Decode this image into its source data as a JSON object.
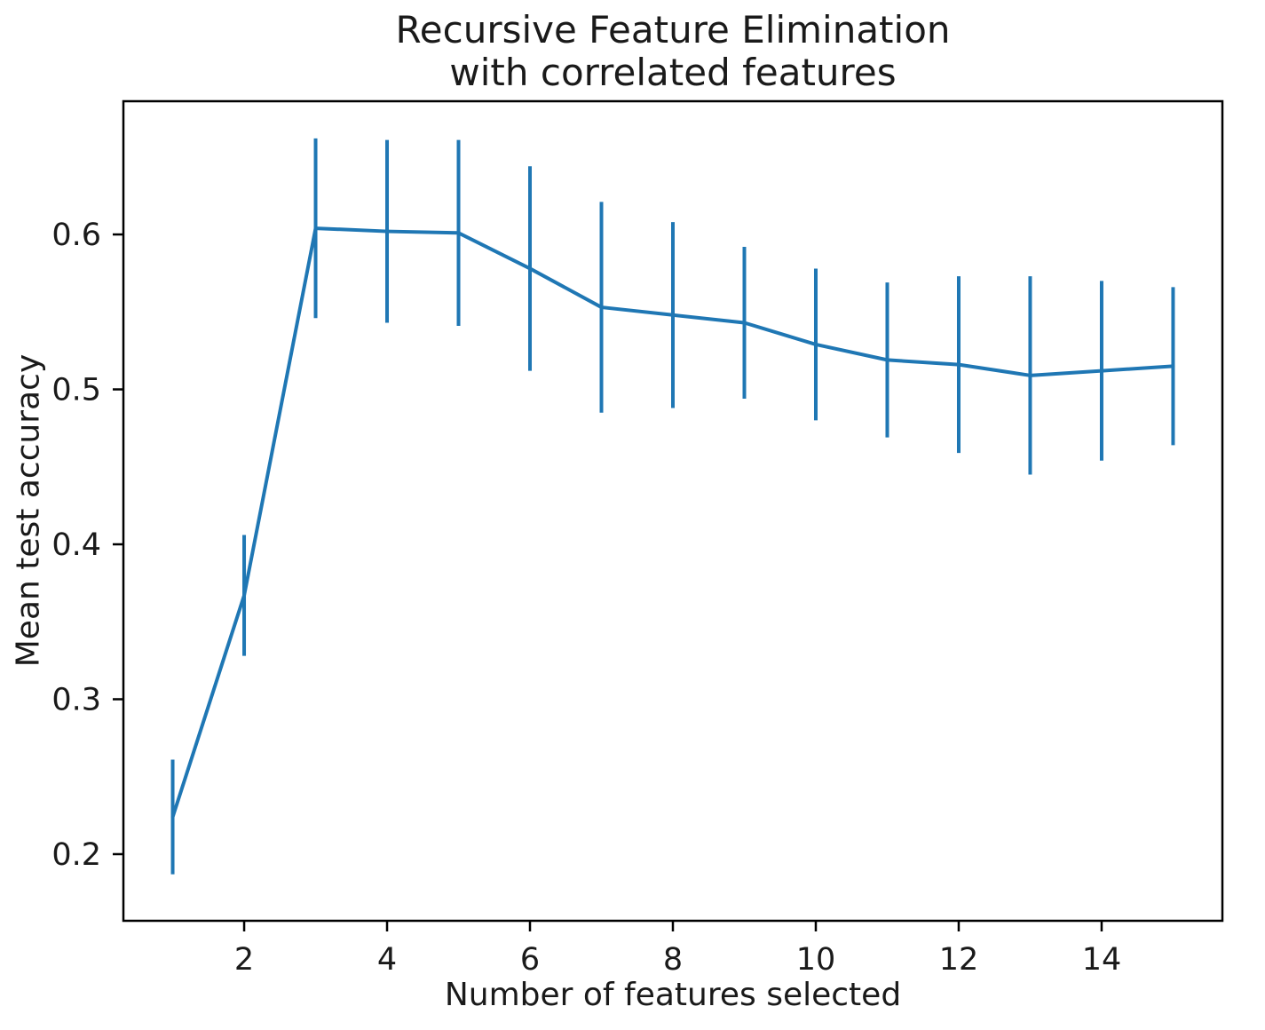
{
  "title": {
    "line1": "Recursive Feature Elimination",
    "line2": "with correlated features"
  },
  "chart_data": {
    "type": "line",
    "title": "Recursive Feature Elimination\nwith correlated features",
    "xlabel": "Number of features selected",
    "ylabel": "Mean test accuracy",
    "x": [
      1,
      2,
      3,
      4,
      5,
      6,
      7,
      8,
      9,
      10,
      11,
      12,
      13,
      14,
      15
    ],
    "series": [
      {
        "name": "Mean test accuracy",
        "values": [
          0.224,
          0.367,
          0.604,
          0.602,
          0.601,
          0.578,
          0.553,
          0.548,
          0.543,
          0.529,
          0.519,
          0.516,
          0.509,
          0.512,
          0.515
        ],
        "errors": [
          0.037,
          0.039,
          0.058,
          0.059,
          0.06,
          0.066,
          0.068,
          0.06,
          0.049,
          0.049,
          0.05,
          0.057,
          0.064,
          0.058,
          0.051
        ]
      }
    ],
    "xticks": [
      2,
      4,
      6,
      8,
      10,
      12,
      14
    ],
    "yticks": [
      0.2,
      0.3,
      0.4,
      0.5,
      0.6
    ],
    "xlim": [
      0.31,
      15.69
    ],
    "ylim": [
      0.157,
      0.686
    ],
    "grid": false,
    "legend": "none",
    "error_caps": false,
    "colors": {
      "line": "#1f77b4",
      "axes": "#000000",
      "text": "#1a1a1a"
    }
  }
}
